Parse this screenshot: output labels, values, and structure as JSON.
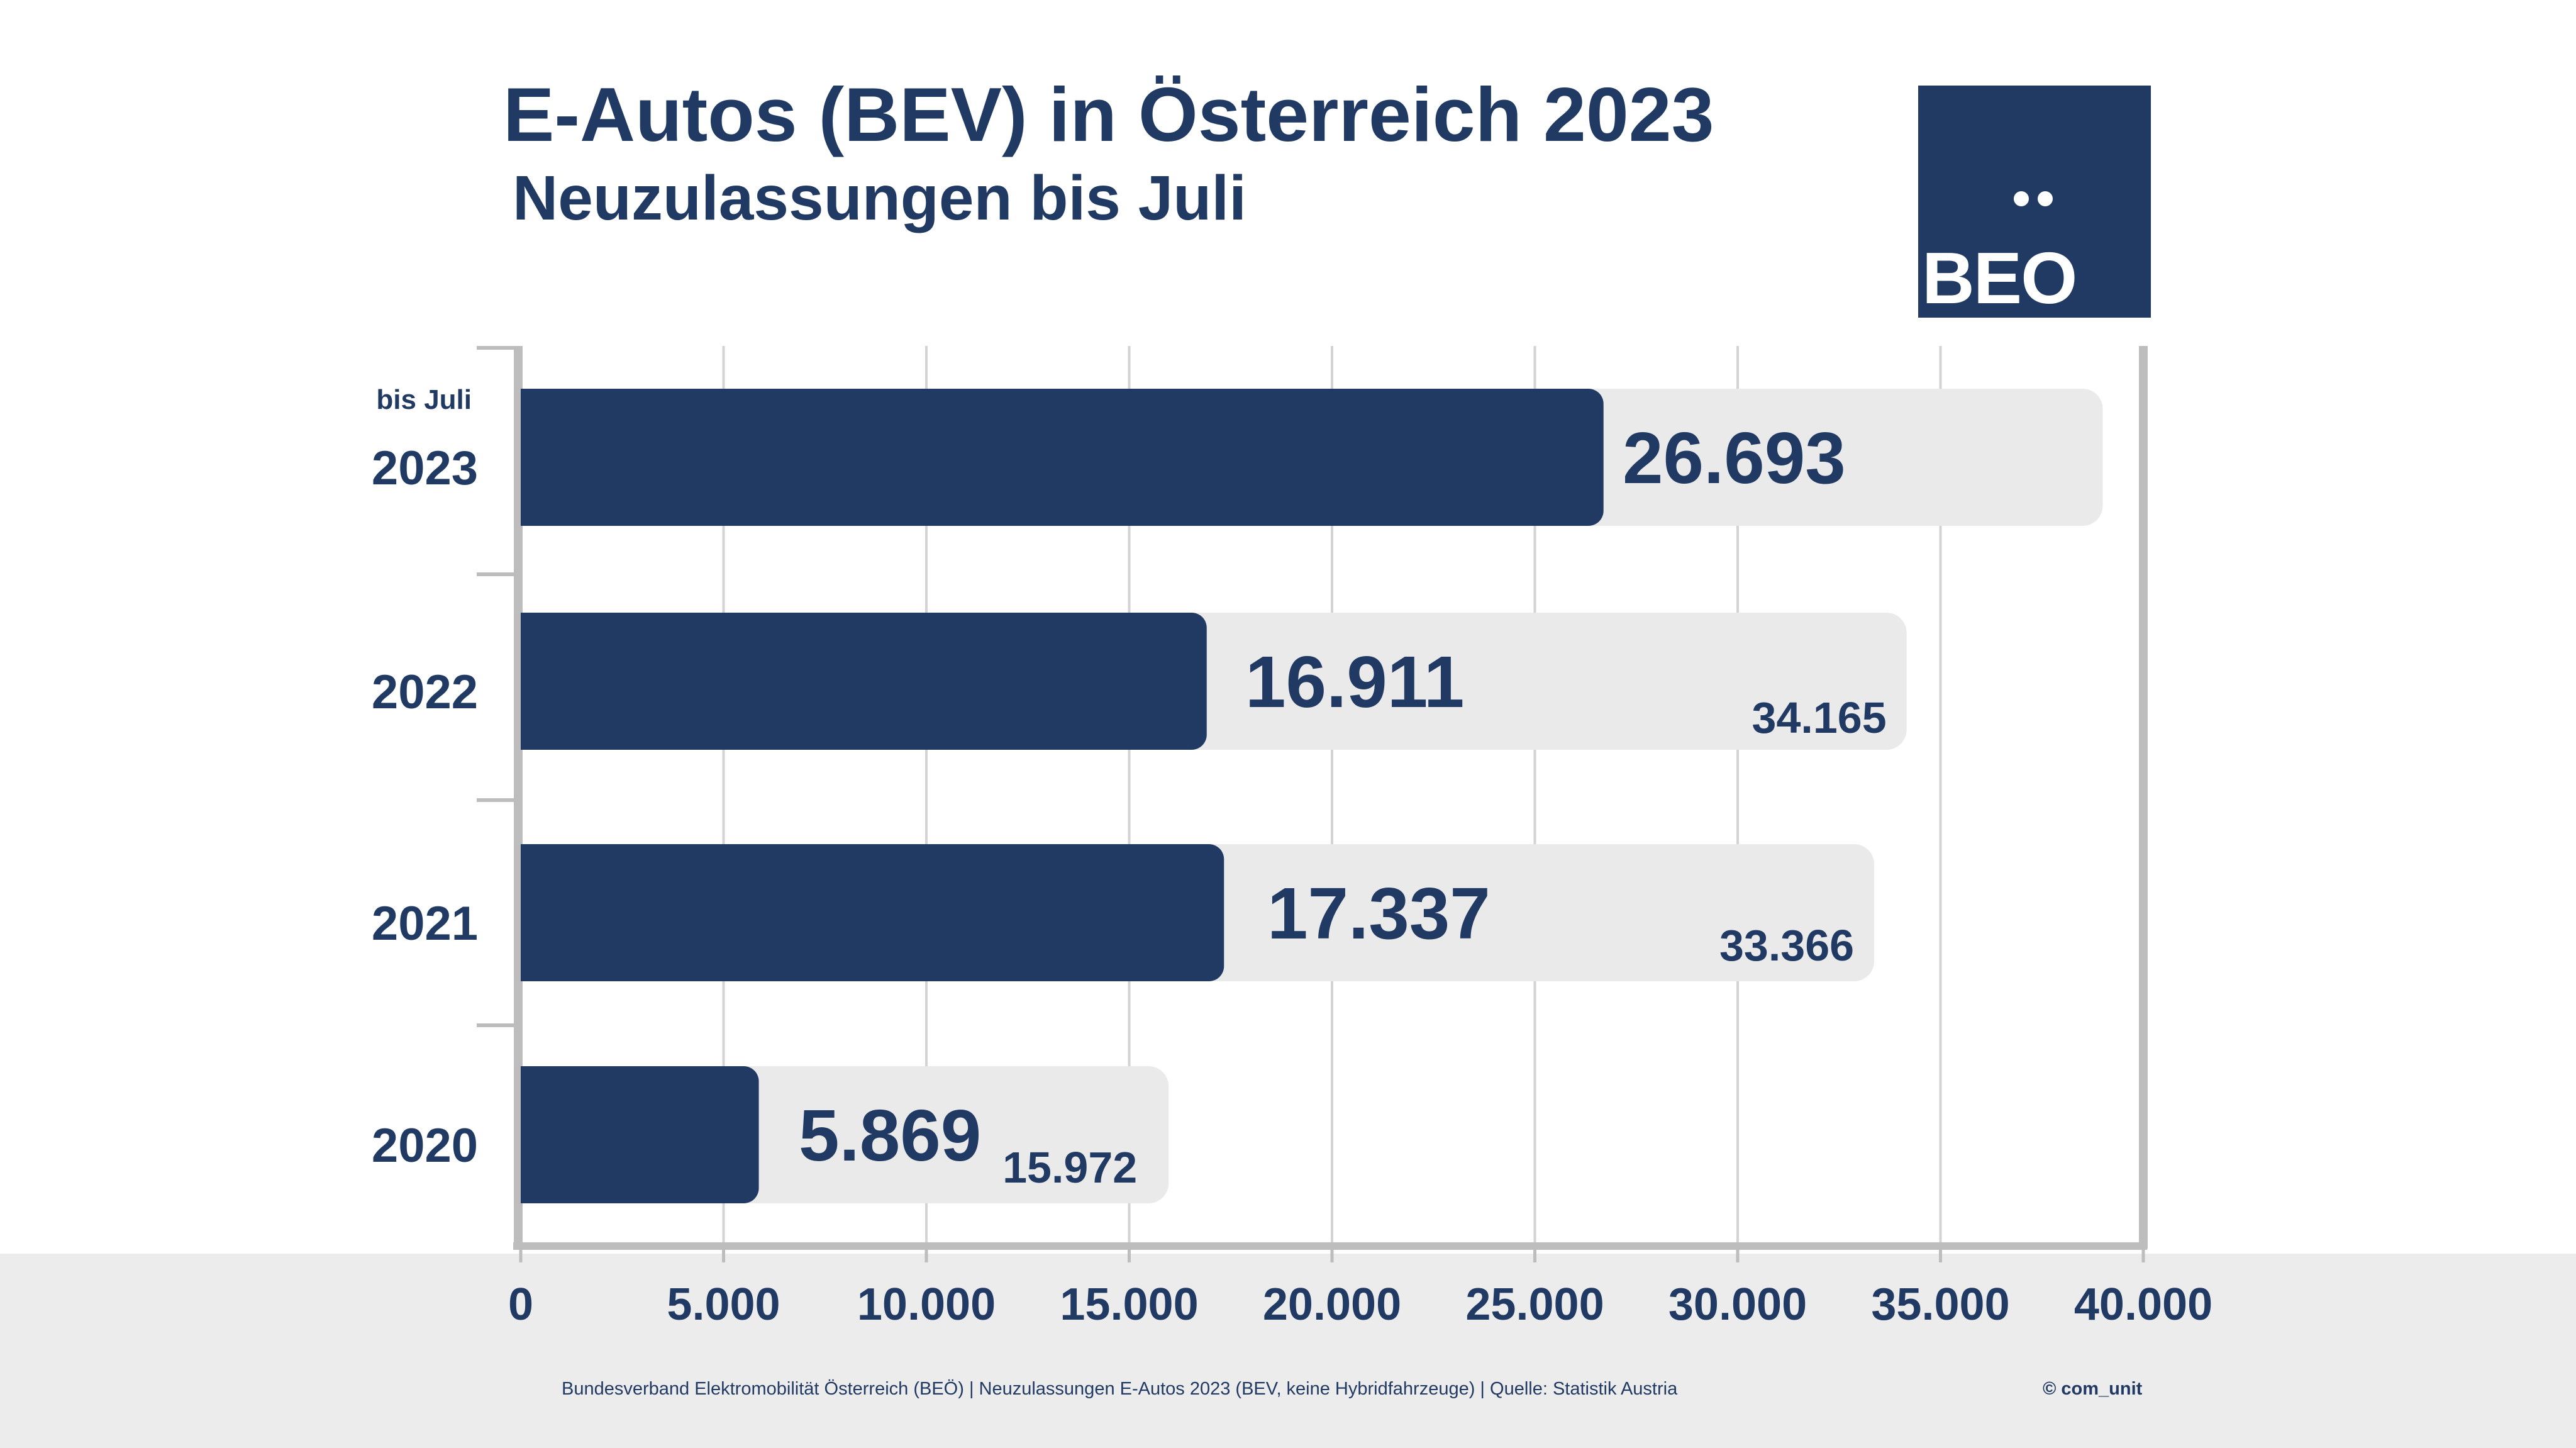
{
  "header": {
    "title": "E-Autos (BEV) in Österreich 2023",
    "subtitle": "Neuzulassungen bis Juli"
  },
  "logo": {
    "text": "BEO"
  },
  "footer": {
    "source": "Bundesverband Elektromobilität Österreich (BEÖ) | Neuzulassungen E-Autos 2023 (BEV, keine Hybridfahrzeuge) | Quelle: Statistik Austria",
    "credit": "© com_unit"
  },
  "colors": {
    "primary": "#213a63",
    "track": "#eaeaea",
    "grid": "#d3d3d3",
    "axis": "#bdbdbd",
    "footer_band": "#ececec"
  },
  "chart_data": {
    "type": "bar",
    "orientation": "horizontal",
    "categories": [
      "2023",
      "2022",
      "2021",
      "2020"
    ],
    "category_notes": [
      "bis Juli",
      "",
      "",
      ""
    ],
    "series": [
      {
        "values": [
          26693,
          16911,
          17337,
          5869
        ],
        "labels": [
          "26.693",
          "16.911",
          "17.337",
          "5.869"
        ]
      },
      {
        "values": [
          39000,
          34165,
          33366,
          15972
        ],
        "labels": [
          "",
          "34.165",
          "33.366",
          "15.972"
        ]
      }
    ],
    "xlim": [
      0,
      40000
    ],
    "xticks": [
      0,
      5000,
      10000,
      15000,
      20000,
      25000,
      30000,
      35000,
      40000
    ],
    "xtick_labels": [
      "0",
      "5.000",
      "10.000",
      "15.000",
      "20.000",
      "25.000",
      "30.000",
      "35.000",
      "40.000"
    ],
    "grid": "vertical"
  }
}
